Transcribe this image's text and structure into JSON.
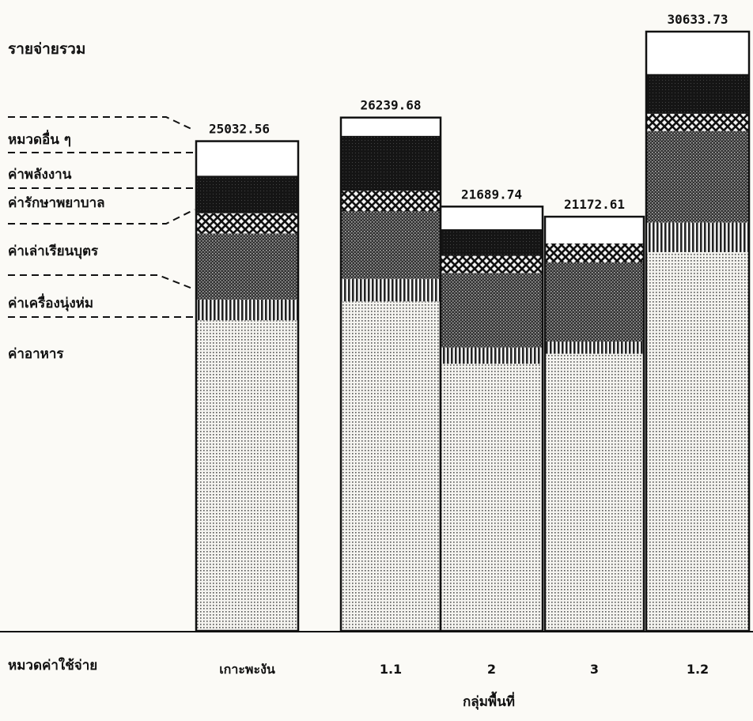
{
  "chart_data": {
    "type": "bar",
    "stacked": true,
    "title": "รายจ่ายรวม",
    "xlabel": "กลุ่มพื้นที่",
    "category_axis_title": "หมวดค่าใช้จ่าย",
    "categories": [
      "เกาะพะงัน",
      "1.1",
      "2",
      "3",
      "1.2"
    ],
    "totals": [
      "25032.56",
      "26239.68",
      "21689.74",
      "21172.61",
      "30633.73"
    ],
    "series": [
      {
        "name": "ค่าอาหาร",
        "values": [
          15876,
          16840,
          13655,
          14165,
          19360
        ],
        "pattern": "pat-food"
      },
      {
        "name": "ค่าเครื่องนุ่งห่ม",
        "values": [
          1059,
          1157,
          831,
          629,
          1511
        ],
        "pattern": "pat-cloth"
      },
      {
        "name": "ค่าเล่าเรียนบุตร",
        "values": [
          3378,
          3448,
          3806,
          4044,
          4683
        ],
        "pattern": "pat-edu"
      },
      {
        "name": "ค่ารักษาพยาบาล",
        "values": [
          1034,
          1057,
          881,
          964,
          882
        ],
        "pattern": "pat-med"
      },
      {
        "name": "ค่าพลังงาน",
        "values": [
          1923,
          2807,
          1360,
          0,
          2030
        ],
        "pattern": "pat-energy"
      },
      {
        "name": "หมวดอื่น ๆ",
        "values": [
          1763,
          931,
          1157,
          1371,
          2168
        ],
        "pattern": "pat-other"
      }
    ],
    "ylim": [
      0,
      30633.73
    ],
    "grid": false,
    "legend": "left"
  }
}
